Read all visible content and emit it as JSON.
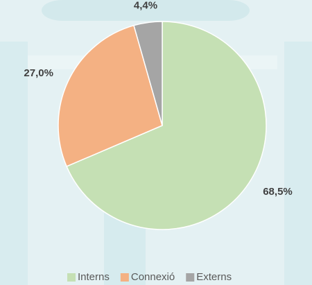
{
  "chart_data": {
    "type": "pie",
    "categories": [
      "Interns",
      "Connexió",
      "Externs"
    ],
    "values": [
      68.5,
      27.0,
      4.4
    ],
    "value_labels": [
      "68,5%",
      "27,0%",
      "4,4%"
    ],
    "colors": [
      "#c5e0b4",
      "#f4b183",
      "#a5a5a5"
    ],
    "legend": "bottom"
  }
}
